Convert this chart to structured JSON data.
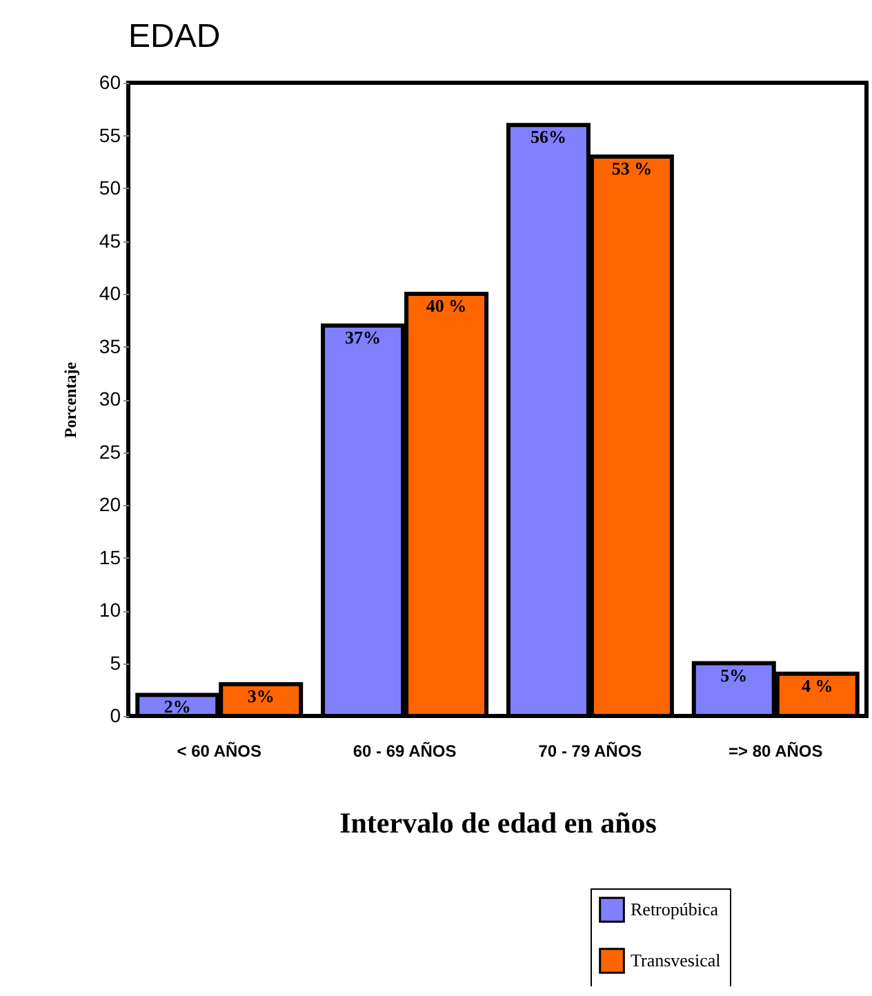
{
  "chart_data": {
    "type": "bar",
    "title": "EDAD",
    "xlabel": "Intervalo de edad en años",
    "ylabel": "Porcentaje",
    "categories": [
      "< 60 AÑOS",
      "60 - 69 AÑOS",
      "70 - 79 AÑOS",
      "=> 80 AÑOS"
    ],
    "series": [
      {
        "name": "Retropúbica",
        "color": "#8080ff",
        "values": [
          2,
          37,
          56,
          5
        ],
        "value_labels": [
          "2%",
          "37%",
          "56%",
          "5%"
        ]
      },
      {
        "name": "Transvesical",
        "color": "#ff6600",
        "values": [
          3,
          40,
          53,
          4
        ],
        "value_labels": [
          "3%",
          "40 %",
          "53 %",
          "4 %"
        ]
      }
    ],
    "ylim": [
      0,
      60
    ],
    "yticks": [
      0,
      5,
      10,
      15,
      20,
      25,
      30,
      35,
      40,
      45,
      50,
      55,
      60
    ],
    "grid": false,
    "legend": "bottom right"
  }
}
